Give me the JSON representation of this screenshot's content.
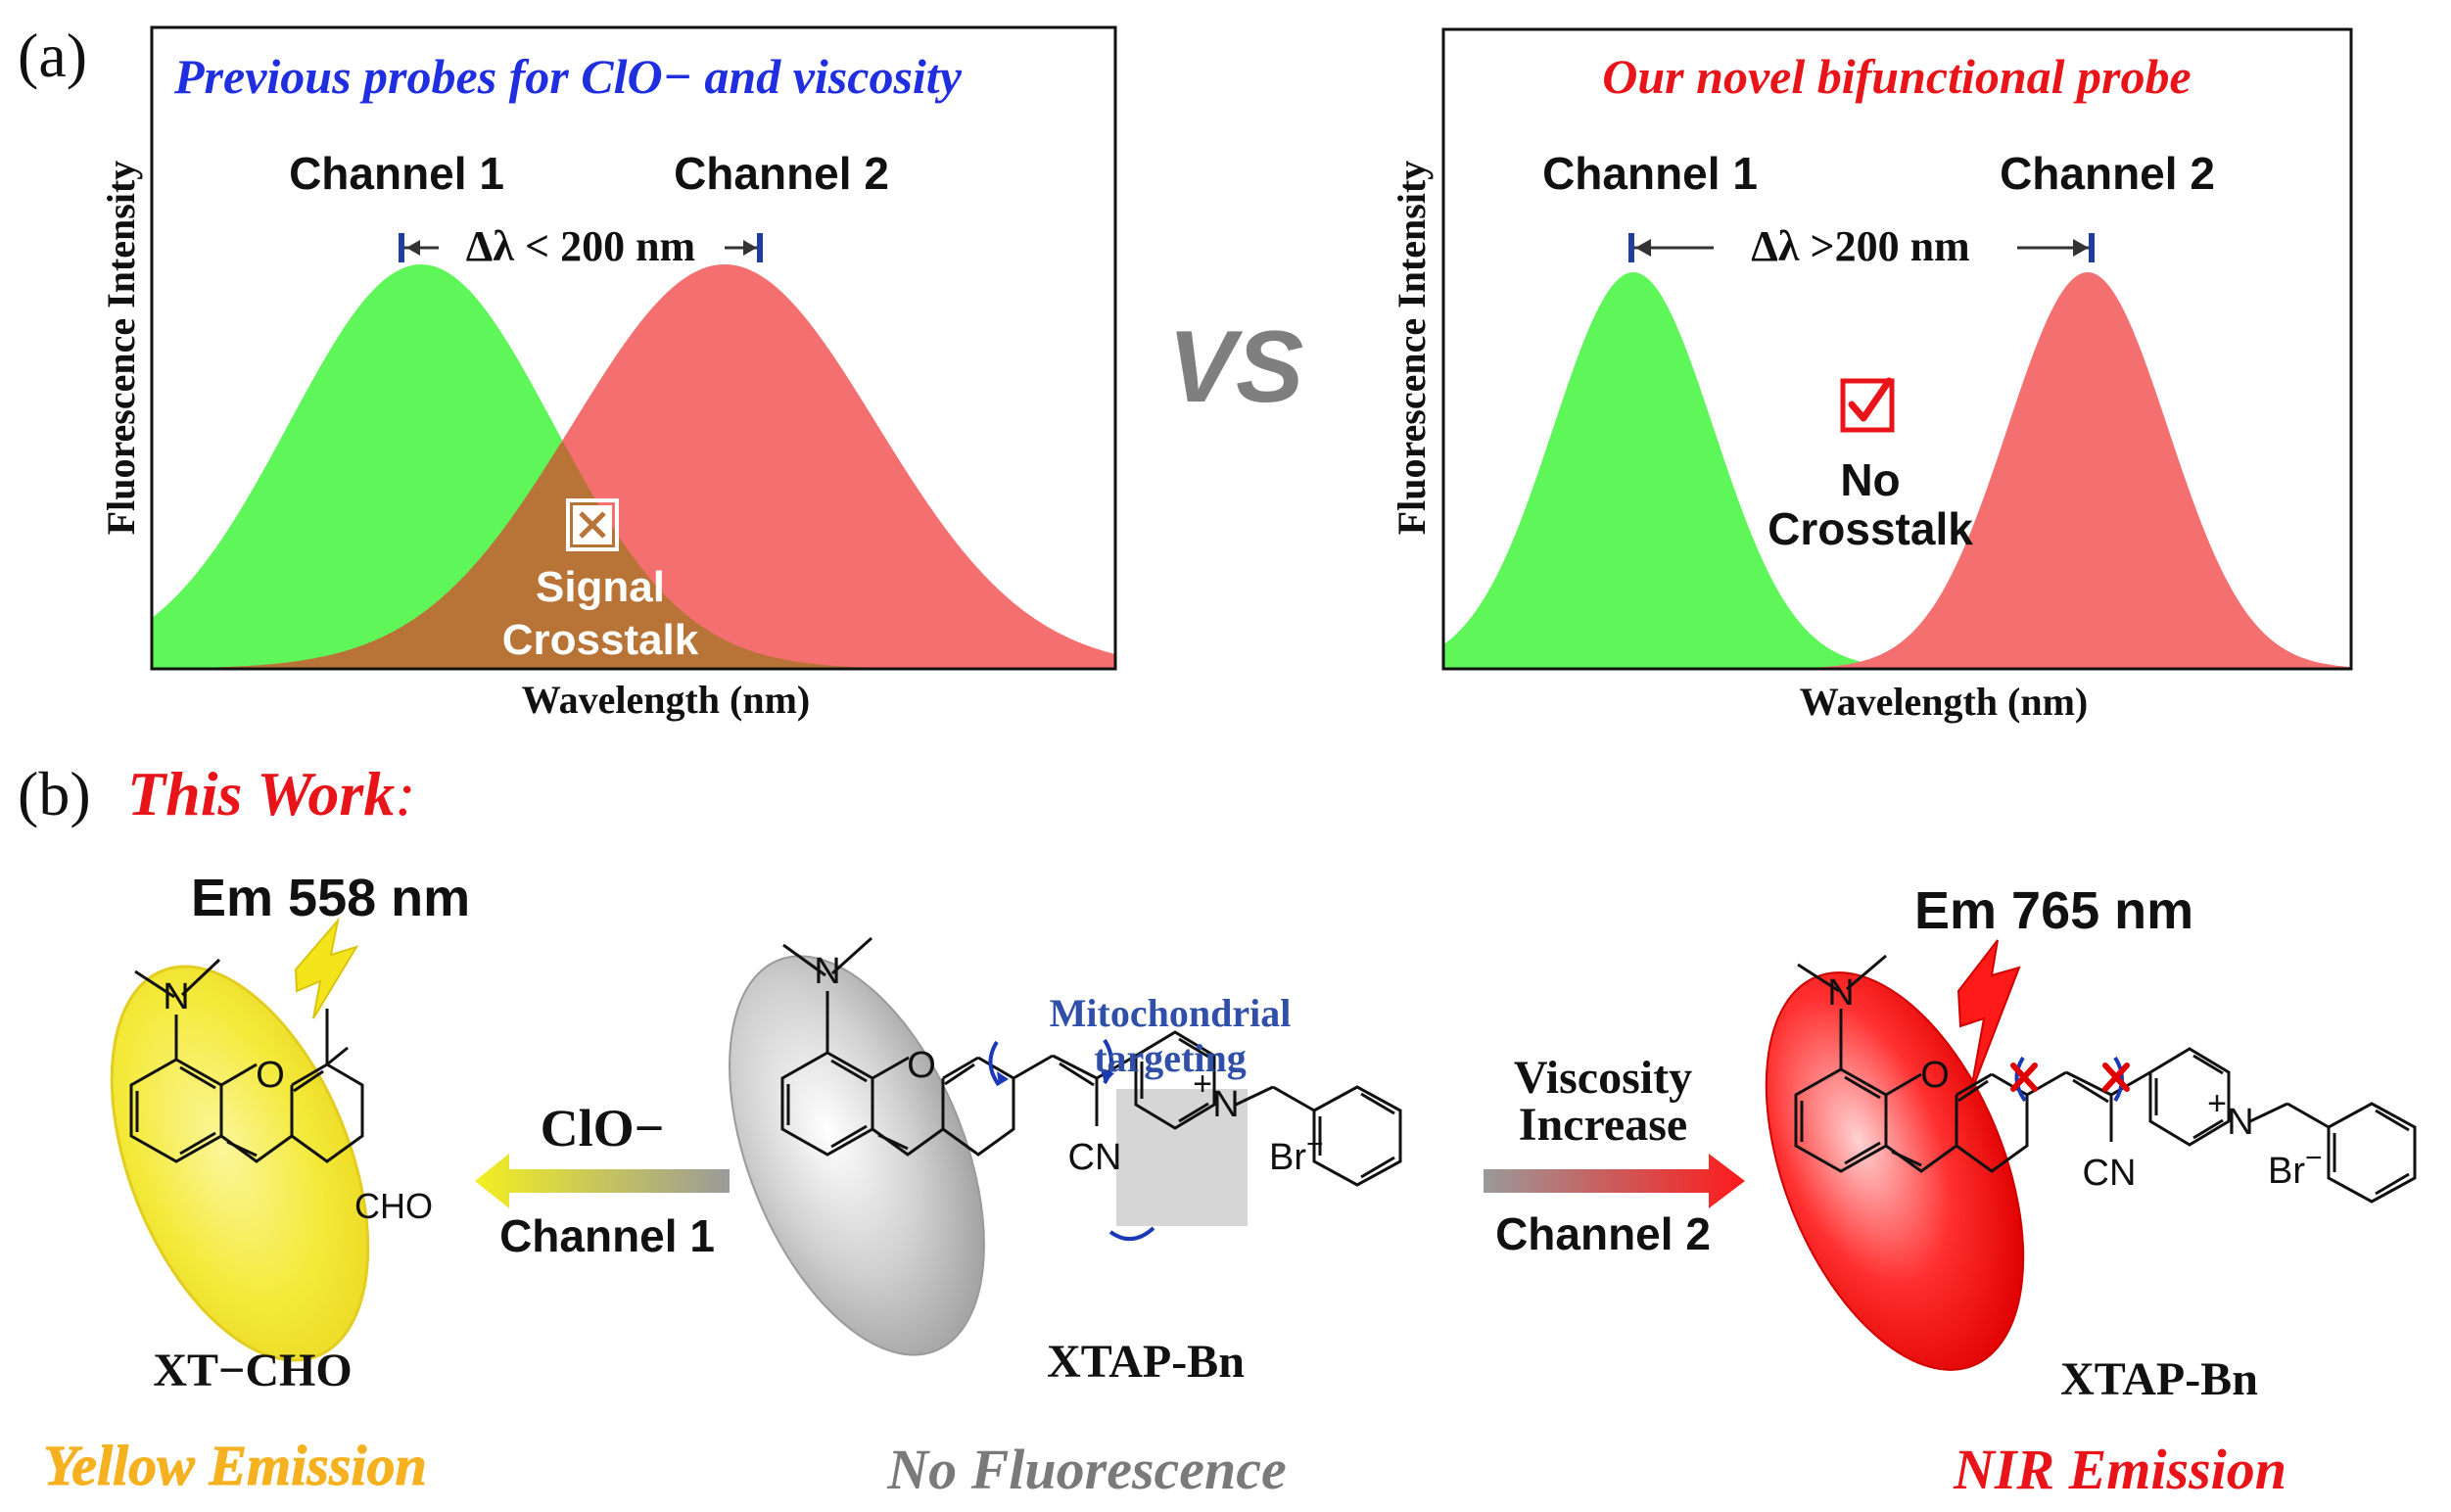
{
  "colors": {
    "green": "#5ff65a",
    "red": "#f46f6f",
    "overlap": "#b87336",
    "yellow": "#f0df1c",
    "gray": "#9a9a9a",
    "title_blue": "#1f2fe0",
    "title_red": "#e8141a",
    "yellow_text": "#f5b11f",
    "gray_text": "#7a7a7a",
    "target_blue": "#2f4fa8",
    "arrow_blue": "#1a3ab5"
  },
  "panel_a": {
    "label": "(a)",
    "vs": "VS",
    "left": {
      "title": "Previous probes for ClO− and viscosity",
      "ylabel": "Fluorescence Intensity",
      "xlabel": "Wavelength (nm)",
      "channel1": "Channel 1",
      "channel2": "Channel 2",
      "delta": "Δλ < 200 nm",
      "crosstalk_line1": "Signal",
      "crosstalk_line2": "Crosstalk",
      "mark_icon": "x-box-icon"
    },
    "right": {
      "title": "Our novel bifunctional probe",
      "ylabel": "Fluorescence Intensity",
      "xlabel": "Wavelength (nm)",
      "channel1": "Channel 1",
      "channel2": "Channel 2",
      "delta": "Δλ >200 nm",
      "note_line1": "No",
      "note_line2": "Crosstalk",
      "mark_icon": "check-box-icon"
    }
  },
  "panel_b": {
    "label": "(b)",
    "title": "This Work",
    "title_colon": ":",
    "left": {
      "em": "Em 558 nm",
      "cho": "CHO",
      "n": "N",
      "o": "O",
      "name": "XT−CHO",
      "emission": "Yellow Emission"
    },
    "center": {
      "n": "N",
      "o": "O",
      "pyridinium_n": "N",
      "plus": "+",
      "cn": "CN",
      "br": "Br",
      "br_charge": "−",
      "target_line1": "Mitochondrial",
      "target_line2": "targeting",
      "name": "XTAP-Bn",
      "emission": "No Fluorescence"
    },
    "arrow_left": {
      "top": "ClO−",
      "bottom": "Channel 1"
    },
    "arrow_right": {
      "top1": "Viscosity",
      "top2": "Increase",
      "bottom": "Channel 2"
    },
    "right": {
      "em": "Em 765 nm",
      "n": "N",
      "o": "O",
      "pyridinium_n": "N",
      "plus": "+",
      "cn": "CN",
      "br": "Br",
      "br_charge": "−",
      "name": "XTAP-Bn",
      "emission": "NIR Emission"
    }
  }
}
